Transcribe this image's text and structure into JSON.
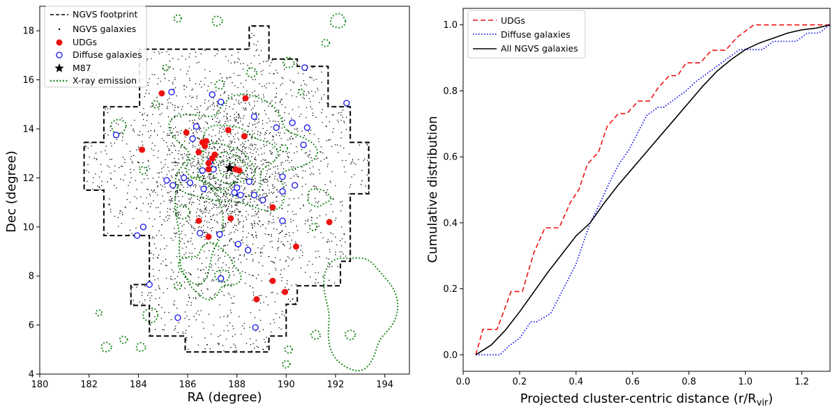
{
  "chart_data": [
    {
      "type": "scatter",
      "xlabel": "RA (degree)",
      "ylabel": "Dec (degree)",
      "xlim": [
        180,
        195
      ],
      "ylim": [
        4,
        19
      ],
      "xticks": [
        180,
        182,
        184,
        186,
        188,
        190,
        192,
        194
      ],
      "yticks": [
        4,
        6,
        8,
        10,
        12,
        14,
        16,
        18
      ],
      "legend_position": "top-left",
      "legend": [
        {
          "label": "NGVS footprint",
          "style": "dashed-line",
          "color": "#000000"
        },
        {
          "label": "NGVS galaxies",
          "style": "small-dot",
          "color": "#000000"
        },
        {
          "label": "UDGs",
          "style": "filled-circle",
          "color": "#ee1111"
        },
        {
          "label": "Diffuse galaxies",
          "style": "open-circle",
          "color": "#1111ee"
        },
        {
          "label": "M87",
          "style": "star",
          "color": "#000000"
        },
        {
          "label": "X-ray emission",
          "style": "dotted-line",
          "color": "#228b22"
        }
      ],
      "footprint": [
        [
          181.8,
          13.45
        ],
        [
          182.6,
          13.45
        ],
        [
          182.6,
          14.9
        ],
        [
          184.05,
          14.9
        ],
        [
          184.05,
          17.25
        ],
        [
          188.5,
          17.25
        ],
        [
          188.5,
          18.2
        ],
        [
          189.3,
          18.2
        ],
        [
          189.3,
          16.85
        ],
        [
          190.45,
          16.85
        ],
        [
          190.45,
          16.55
        ],
        [
          191.7,
          16.55
        ],
        [
          191.7,
          14.9
        ],
        [
          192.6,
          14.9
        ],
        [
          192.6,
          13.45
        ],
        [
          193.35,
          13.45
        ],
        [
          193.35,
          11.35
        ],
        [
          192.6,
          11.35
        ],
        [
          192.6,
          8.6
        ],
        [
          192.2,
          8.6
        ],
        [
          192.2,
          7.6
        ],
        [
          190.45,
          7.6
        ],
        [
          190.45,
          6.85
        ],
        [
          190.0,
          6.85
        ],
        [
          190.0,
          5.55
        ],
        [
          189.3,
          5.55
        ],
        [
          189.3,
          4.9
        ],
        [
          185.9,
          4.9
        ],
        [
          185.9,
          5.55
        ],
        [
          184.45,
          5.55
        ],
        [
          184.45,
          6.8
        ],
        [
          183.7,
          6.8
        ],
        [
          183.7,
          7.65
        ],
        [
          184.45,
          7.65
        ],
        [
          184.45,
          9.65
        ],
        [
          182.6,
          9.65
        ],
        [
          182.6,
          11.5
        ],
        [
          181.8,
          11.5
        ],
        [
          181.8,
          13.45
        ]
      ],
      "udgs": [
        [
          184.95,
          15.45
        ],
        [
          185.95,
          13.85
        ],
        [
          184.15,
          13.15
        ],
        [
          186.45,
          13.05
        ],
        [
          186.6,
          13.45
        ],
        [
          186.75,
          13.5
        ],
        [
          186.7,
          13.3
        ],
        [
          186.85,
          12.6
        ],
        [
          187.0,
          12.8
        ],
        [
          187.1,
          12.95
        ],
        [
          186.85,
          12.35
        ],
        [
          187.95,
          12.35
        ],
        [
          188.1,
          12.3
        ],
        [
          187.65,
          13.95
        ],
        [
          188.3,
          13.7
        ],
        [
          188.35,
          15.25
        ],
        [
          186.45,
          10.25
        ],
        [
          186.85,
          9.6
        ],
        [
          187.75,
          10.35
        ],
        [
          189.45,
          10.8
        ],
        [
          191.75,
          10.2
        ],
        [
          190.4,
          9.2
        ],
        [
          189.45,
          7.8
        ],
        [
          188.8,
          7.05
        ],
        [
          189.95,
          7.35
        ]
      ],
      "diffuse": [
        [
          183.1,
          13.75
        ],
        [
          185.35,
          15.5
        ],
        [
          186.2,
          13.6
        ],
        [
          186.35,
          14.1
        ],
        [
          187.0,
          15.4
        ],
        [
          187.35,
          15.1
        ],
        [
          188.7,
          14.5
        ],
        [
          189.6,
          14.05
        ],
        [
          190.25,
          14.25
        ],
        [
          190.85,
          14.05
        ],
        [
          190.75,
          16.5
        ],
        [
          192.45,
          15.05
        ],
        [
          190.7,
          13.35
        ],
        [
          186.9,
          12.65
        ],
        [
          186.6,
          12.3
        ],
        [
          187.05,
          12.35
        ],
        [
          188.0,
          11.6
        ],
        [
          188.5,
          11.85
        ],
        [
          188.15,
          11.3
        ],
        [
          189.85,
          12.05
        ],
        [
          189.85,
          11.45
        ],
        [
          190.35,
          11.7
        ],
        [
          185.4,
          11.7
        ],
        [
          185.85,
          12.0
        ],
        [
          185.15,
          11.9
        ],
        [
          186.1,
          11.8
        ],
        [
          186.65,
          11.55
        ],
        [
          187.9,
          11.4
        ],
        [
          188.7,
          11.3
        ],
        [
          189.05,
          11.1
        ],
        [
          189.85,
          10.25
        ],
        [
          184.2,
          10.0
        ],
        [
          183.95,
          9.65
        ],
        [
          186.5,
          9.75
        ],
        [
          187.3,
          9.7
        ],
        [
          188.05,
          9.3
        ],
        [
          188.45,
          9.05
        ],
        [
          187.35,
          7.9
        ],
        [
          184.45,
          7.65
        ],
        [
          185.6,
          6.3
        ],
        [
          188.75,
          5.9
        ]
      ],
      "m87": [
        187.7,
        12.4
      ]
    },
    {
      "type": "line",
      "xlabel": "Projected cluster-centric distance (r/R",
      "xlabel_sub": "vir",
      "xlabel_close": ")",
      "ylabel": "Cumulative distribution",
      "xlim": [
        0.0,
        1.3
      ],
      "ylim": [
        -0.05,
        1.05
      ],
      "xticks": [
        0.0,
        0.2,
        0.4,
        0.6,
        0.8,
        1.0,
        1.2
      ],
      "yticks": [
        0.0,
        0.2,
        0.4,
        0.6,
        0.8,
        1.0
      ],
      "legend_position": "top-left",
      "series": [
        {
          "name": "UDGs",
          "style": "dashed",
          "color": "#ee1111",
          "x": [
            0.045,
            0.07,
            0.07,
            0.12,
            0.12,
            0.17,
            0.17,
            0.21,
            0.21,
            0.25,
            0.25,
            0.29,
            0.29,
            0.34,
            0.34,
            0.38,
            0.38,
            0.41,
            0.41,
            0.44,
            0.44,
            0.48,
            0.48,
            0.51,
            0.51,
            0.55,
            0.55,
            0.58,
            0.58,
            0.62,
            0.62,
            0.66,
            0.66,
            0.69,
            0.69,
            0.73,
            0.73,
            0.76,
            0.76,
            0.79,
            0.79,
            0.84,
            0.84,
            0.88,
            0.88,
            0.93,
            0.93,
            0.97,
            0.97,
            1.03,
            1.03,
            1.05,
            1.3
          ],
          "y": [
            0.0,
            0.077,
            0.077,
            0.077,
            0.077,
            0.192,
            0.192,
            0.192,
            0.192,
            0.308,
            0.308,
            0.385,
            0.385,
            0.385,
            0.385,
            0.462,
            0.462,
            0.5,
            0.5,
            0.577,
            0.577,
            0.615,
            0.615,
            0.692,
            0.692,
            0.731,
            0.731,
            0.731,
            0.731,
            0.769,
            0.769,
            0.769,
            0.769,
            0.808,
            0.808,
            0.846,
            0.846,
            0.846,
            0.846,
            0.885,
            0.885,
            0.885,
            0.885,
            0.923,
            0.923,
            0.923,
            0.923,
            0.962,
            0.962,
            1.0,
            1.0,
            1.0,
            1.0
          ]
        },
        {
          "name": "Diffuse galaxies",
          "style": "dotted",
          "color": "#1111ee",
          "x": [
            0.045,
            0.06,
            0.1,
            0.13,
            0.16,
            0.2,
            0.24,
            0.26,
            0.31,
            0.34,
            0.37,
            0.4,
            0.43,
            0.45,
            0.48,
            0.52,
            0.55,
            0.59,
            0.62,
            0.65,
            0.69,
            0.71,
            0.75,
            0.79,
            0.82,
            0.86,
            0.9,
            0.94,
            0.98,
            1.02,
            1.06,
            1.1,
            1.14,
            1.18,
            1.22,
            1.26,
            1.3
          ],
          "y": [
            0.0,
            0.0,
            0.0,
            0.0,
            0.025,
            0.05,
            0.1,
            0.1,
            0.125,
            0.175,
            0.225,
            0.275,
            0.35,
            0.4,
            0.45,
            0.525,
            0.575,
            0.625,
            0.675,
            0.725,
            0.75,
            0.75,
            0.775,
            0.8,
            0.825,
            0.85,
            0.875,
            0.9,
            0.925,
            0.925,
            0.925,
            0.95,
            0.95,
            0.95,
            0.975,
            0.975,
            1.0
          ]
        },
        {
          "name": "All NGVS galaxies",
          "style": "solid",
          "color": "#000000",
          "x": [
            0.045,
            0.1,
            0.15,
            0.2,
            0.25,
            0.3,
            0.35,
            0.4,
            0.45,
            0.5,
            0.55,
            0.6,
            0.65,
            0.7,
            0.75,
            0.8,
            0.85,
            0.9,
            0.95,
            1.0,
            1.05,
            1.1,
            1.15,
            1.2,
            1.25,
            1.3
          ],
          "y": [
            0.0,
            0.03,
            0.075,
            0.13,
            0.19,
            0.25,
            0.305,
            0.36,
            0.4,
            0.46,
            0.515,
            0.565,
            0.615,
            0.665,
            0.715,
            0.765,
            0.815,
            0.86,
            0.895,
            0.925,
            0.945,
            0.96,
            0.975,
            0.985,
            0.99,
            1.0
          ]
        }
      ]
    }
  ]
}
